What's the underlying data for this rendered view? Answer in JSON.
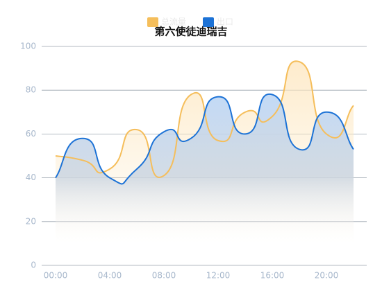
{
  "chart_data": {
    "type": "line",
    "title": "第六使徒迪瑞吉",
    "categories": [
      "00:00",
      null,
      "04:00",
      null,
      "08:00",
      null,
      "12:00",
      null,
      "16:00",
      null,
      "20:00",
      null
    ],
    "series": [
      {
        "name": "总流量",
        "color": "#f5be5b",
        "values": [
          50,
          48,
          44,
          62,
          41,
          78,
          57,
          70,
          68,
          93,
          60,
          73
        ]
      },
      {
        "name": "出口",
        "color": "#1c72d6",
        "values": [
          40,
          58,
          40,
          44,
          61,
          58,
          77,
          60,
          78,
          53,
          70,
          53
        ]
      }
    ],
    "ylim": [
      0,
      100
    ],
    "yticks": [
      0,
      20,
      40,
      60,
      80,
      100
    ],
    "grid": true
  }
}
